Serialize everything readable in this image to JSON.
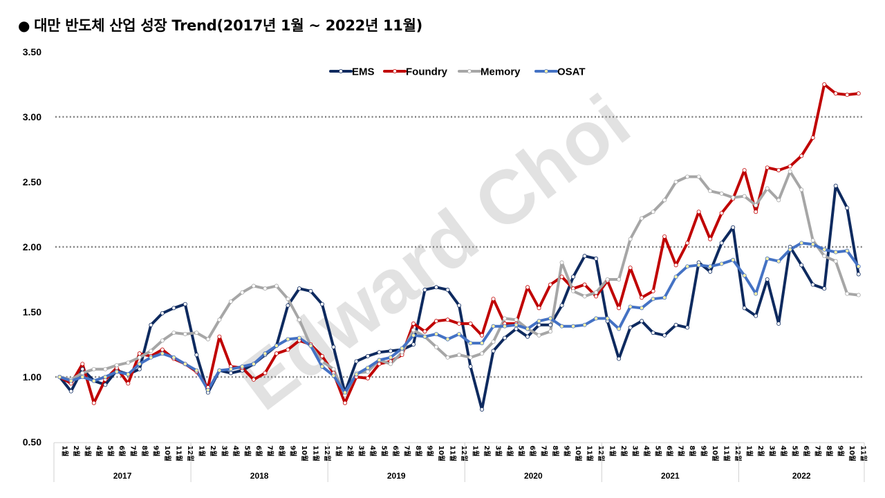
{
  "title": "대만 반도체 산업 성장 Trend(2017년 1월 ~ 2022년 11월)",
  "title_bullet": "●",
  "watermark": "Edward Choi",
  "chart_data": {
    "type": "line",
    "title": "대만 반도체 산업 성장 Trend(2017년 1월 ~ 2022년 11월)",
    "ylim": [
      0.5,
      3.5
    ],
    "yticks": [
      "0.50",
      "1.00",
      "1.50",
      "2.00",
      "2.50",
      "3.00",
      "3.50"
    ],
    "dotted_gridlines": [
      1.0,
      2.0,
      3.0
    ],
    "legend_position": "top-center",
    "month_suffix": "월",
    "years": [
      {
        "label": "2017",
        "months": 12
      },
      {
        "label": "2018",
        "months": 12
      },
      {
        "label": "2019",
        "months": 12
      },
      {
        "label": "2020",
        "months": 12
      },
      {
        "label": "2021",
        "months": 12
      },
      {
        "label": "2022",
        "months": 11
      }
    ],
    "series": [
      {
        "name": "EMS",
        "color": "#0e2a5f",
        "values": [
          1.0,
          0.89,
          1.06,
          0.97,
          0.94,
          1.05,
          1.02,
          1.06,
          1.4,
          1.49,
          1.53,
          1.56,
          1.17,
          0.88,
          1.05,
          1.03,
          1.05,
          1.1,
          1.17,
          1.24,
          1.55,
          1.68,
          1.66,
          1.56,
          1.23,
          0.88,
          1.12,
          1.16,
          1.19,
          1.2,
          1.21,
          1.25,
          1.67,
          1.69,
          1.67,
          1.55,
          1.08,
          0.75,
          1.2,
          1.3,
          1.37,
          1.31,
          1.4,
          1.4,
          1.55,
          1.77,
          1.93,
          1.91,
          1.43,
          1.14,
          1.38,
          1.43,
          1.34,
          1.32,
          1.4,
          1.38,
          1.88,
          1.81,
          2.03,
          2.15,
          1.53,
          1.47,
          1.75,
          1.41,
          2.0,
          1.86,
          1.71,
          1.68,
          2.47,
          2.3,
          1.79
        ]
      },
      {
        "name": "Foundry",
        "color": "#c00000",
        "values": [
          1.0,
          0.95,
          1.1,
          0.8,
          0.98,
          1.07,
          0.95,
          1.18,
          1.16,
          1.21,
          1.14,
          1.1,
          1.04,
          0.92,
          1.31,
          1.08,
          1.07,
          0.98,
          1.03,
          1.18,
          1.21,
          1.28,
          1.25,
          1.16,
          1.03,
          0.8,
          1.0,
          0.99,
          1.1,
          1.12,
          1.17,
          1.41,
          1.35,
          1.43,
          1.44,
          1.41,
          1.41,
          1.32,
          1.6,
          1.41,
          1.41,
          1.69,
          1.53,
          1.71,
          1.77,
          1.68,
          1.71,
          1.62,
          1.74,
          1.53,
          1.84,
          1.61,
          1.66,
          2.08,
          1.86,
          2.03,
          2.27,
          2.06,
          2.26,
          2.37,
          2.59,
          2.27,
          2.61,
          2.59,
          2.62,
          2.7,
          2.84,
          3.25,
          3.18,
          3.17,
          3.18
        ]
      },
      {
        "name": "Memory",
        "color": "#a6a6a6",
        "values": [
          1.0,
          0.98,
          1.03,
          1.06,
          1.06,
          1.09,
          1.11,
          1.15,
          1.2,
          1.28,
          1.34,
          1.33,
          1.34,
          1.29,
          1.44,
          1.58,
          1.65,
          1.7,
          1.68,
          1.7,
          1.6,
          1.44,
          1.24,
          1.12,
          1.06,
          0.86,
          1.03,
          1.04,
          1.13,
          1.1,
          1.19,
          1.36,
          1.31,
          1.23,
          1.15,
          1.17,
          1.15,
          1.18,
          1.27,
          1.45,
          1.44,
          1.37,
          1.32,
          1.35,
          1.88,
          1.66,
          1.62,
          1.65,
          1.75,
          1.75,
          2.06,
          2.22,
          2.27,
          2.36,
          2.5,
          2.54,
          2.54,
          2.43,
          2.41,
          2.38,
          2.39,
          2.32,
          2.45,
          2.36,
          2.58,
          2.44,
          2.05,
          1.93,
          1.89,
          1.64,
          1.63
        ]
      },
      {
        "name": "OSAT",
        "color": "#4472c4",
        "values": [
          1.0,
          0.97,
          1.0,
          0.97,
          1.0,
          1.04,
          1.02,
          1.1,
          1.15,
          1.18,
          1.15,
          1.1,
          1.05,
          0.9,
          1.05,
          1.06,
          1.08,
          1.1,
          1.18,
          1.24,
          1.29,
          1.3,
          1.24,
          1.08,
          1.01,
          0.88,
          1.02,
          1.07,
          1.13,
          1.15,
          1.22,
          1.32,
          1.31,
          1.33,
          1.29,
          1.33,
          1.26,
          1.26,
          1.39,
          1.39,
          1.4,
          1.37,
          1.43,
          1.45,
          1.39,
          1.39,
          1.4,
          1.45,
          1.45,
          1.37,
          1.54,
          1.53,
          1.6,
          1.61,
          1.77,
          1.85,
          1.86,
          1.85,
          1.87,
          1.9,
          1.78,
          1.64,
          1.91,
          1.89,
          1.98,
          2.03,
          2.02,
          1.98,
          1.96,
          1.97,
          1.85
        ]
      }
    ]
  }
}
